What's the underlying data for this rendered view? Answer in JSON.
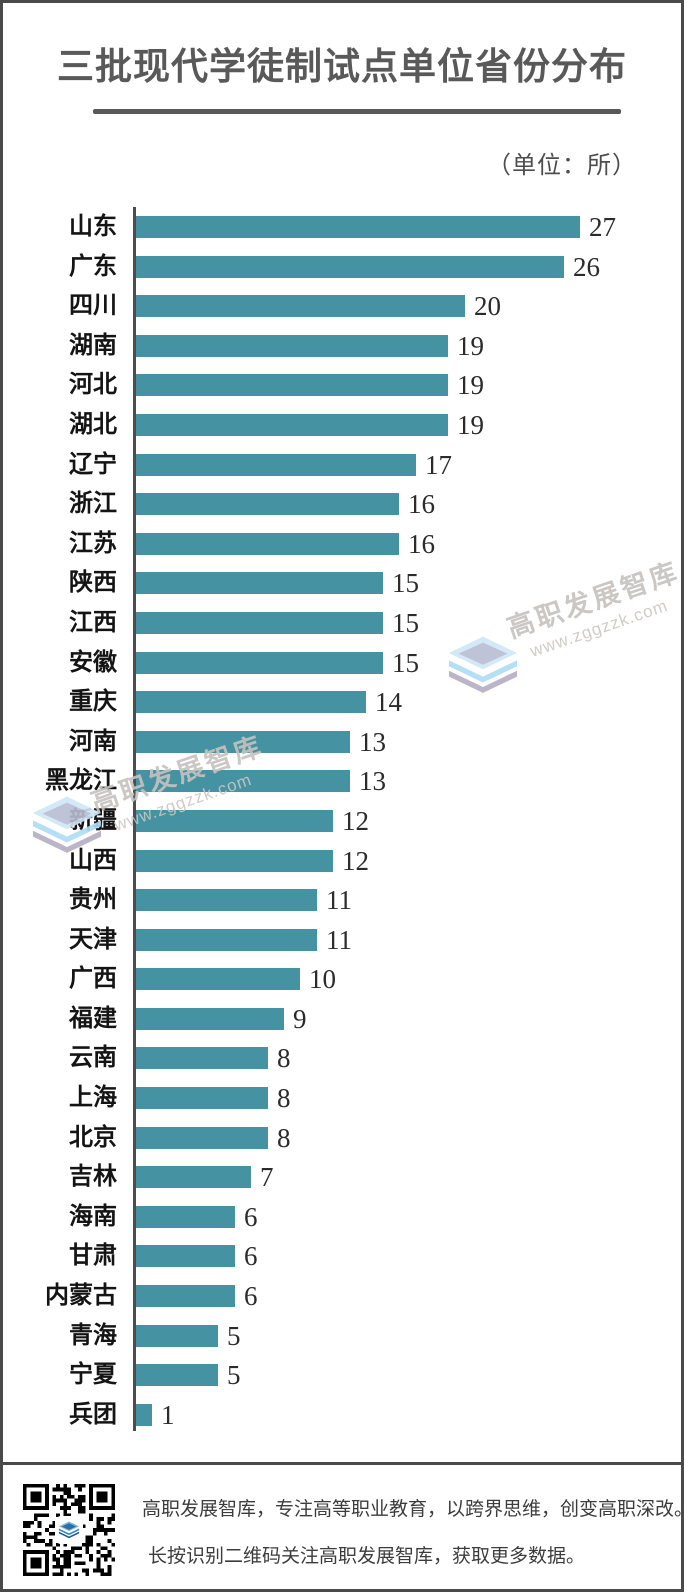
{
  "title": "三批现代学徒制试点单位省份分布",
  "unit_label": "（单位：所）",
  "chart_data": {
    "type": "bar",
    "orientation": "horizontal",
    "title": "三批现代学徒制试点单位省份分布",
    "unit": "所",
    "categories": [
      "山东",
      "广东",
      "四川",
      "湖南",
      "河北",
      "湖北",
      "辽宁",
      "浙江",
      "江苏",
      "陕西",
      "江西",
      "安徽",
      "重庆",
      "河南",
      "黑龙江",
      "新疆",
      "山西",
      "贵州",
      "天津",
      "广西",
      "福建",
      "云南",
      "上海",
      "北京",
      "吉林",
      "海南",
      "甘肃",
      "内蒙古",
      "青海",
      "宁夏",
      "兵团"
    ],
    "values": [
      27,
      26,
      20,
      19,
      19,
      19,
      17,
      16,
      16,
      15,
      15,
      15,
      14,
      13,
      13,
      12,
      12,
      11,
      11,
      10,
      9,
      8,
      8,
      8,
      7,
      6,
      6,
      6,
      5,
      5,
      1
    ],
    "xlim": [
      0,
      27
    ],
    "bar_color": "#4492A2",
    "value_labels": true,
    "grid": false,
    "legend": false
  },
  "watermark": {
    "brand": "高职发展智库",
    "url": "www.zggzzk.com"
  },
  "footer": {
    "line1": "高职发展智库，专注高等职业教育，以跨界思维，创变高职深改。",
    "line2": "长按识别二维码关注高职发展智库，获取更多数据。"
  },
  "colors": {
    "bar": "#4492A2",
    "title": "#595959",
    "border": "#4A4A4A",
    "axis": "#4D4D4D",
    "text": "#141414",
    "footer_text": "#3C3C3C",
    "watermark_text": "#C6C2BF",
    "watermark_blue": "#BFE0F5",
    "qr_blue": "#2E86C6"
  }
}
